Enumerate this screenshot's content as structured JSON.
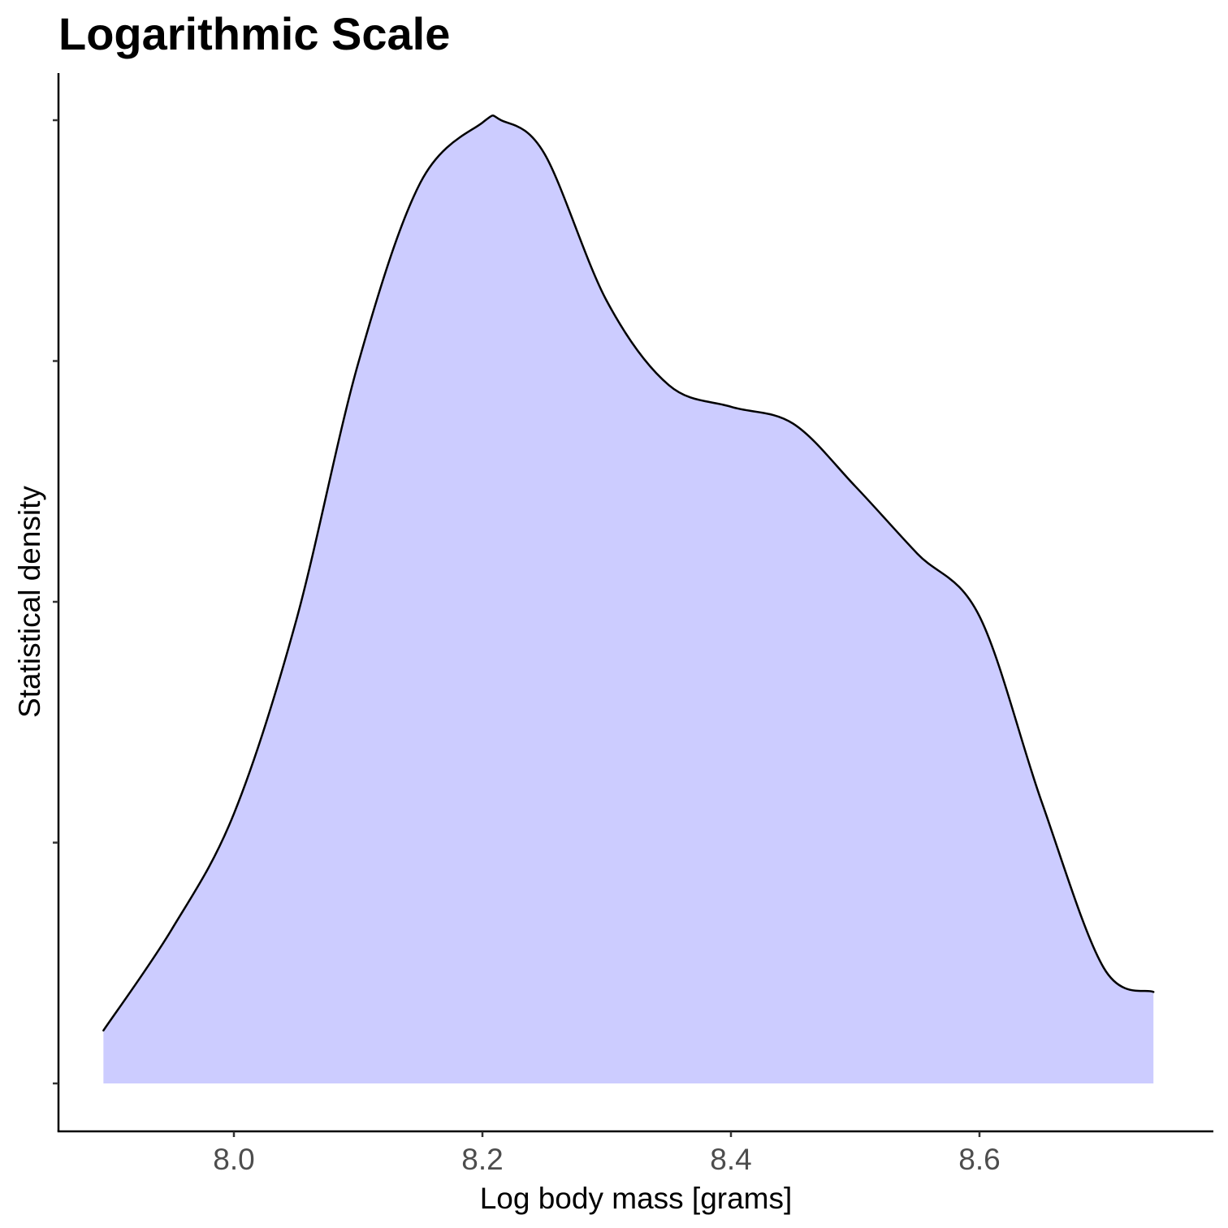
{
  "chart_data": {
    "type": "area",
    "title": "Logarithmic Scale",
    "xlabel": "Log body mass [grams]",
    "ylabel": "Statistical density",
    "xlim": [
      7.86,
      8.74
    ],
    "ylim": [
      0,
      4.2
    ],
    "x_ticks": [
      8.0,
      8.2,
      8.4,
      8.6
    ],
    "x_tick_labels": [
      "8.0",
      "8.2",
      "8.4",
      "8.6"
    ],
    "y_ticks": [
      0,
      1,
      2,
      3,
      4
    ],
    "y_tick_labels_shown": false,
    "grid": false,
    "legend": "none",
    "fill_color": "#ccccff",
    "line_color": "#000000",
    "x": [
      7.895,
      7.95,
      8.0,
      8.05,
      8.1,
      8.15,
      8.2,
      8.215,
      8.25,
      8.3,
      8.35,
      8.4,
      8.45,
      8.5,
      8.55,
      8.6,
      8.65,
      8.7,
      8.74
    ],
    "density": [
      0.22,
      0.64,
      1.12,
      1.92,
      2.99,
      3.74,
      3.99,
      4.0,
      3.86,
      3.25,
      2.9,
      2.81,
      2.74,
      2.48,
      2.2,
      1.94,
      1.17,
      0.48,
      0.38
    ]
  }
}
